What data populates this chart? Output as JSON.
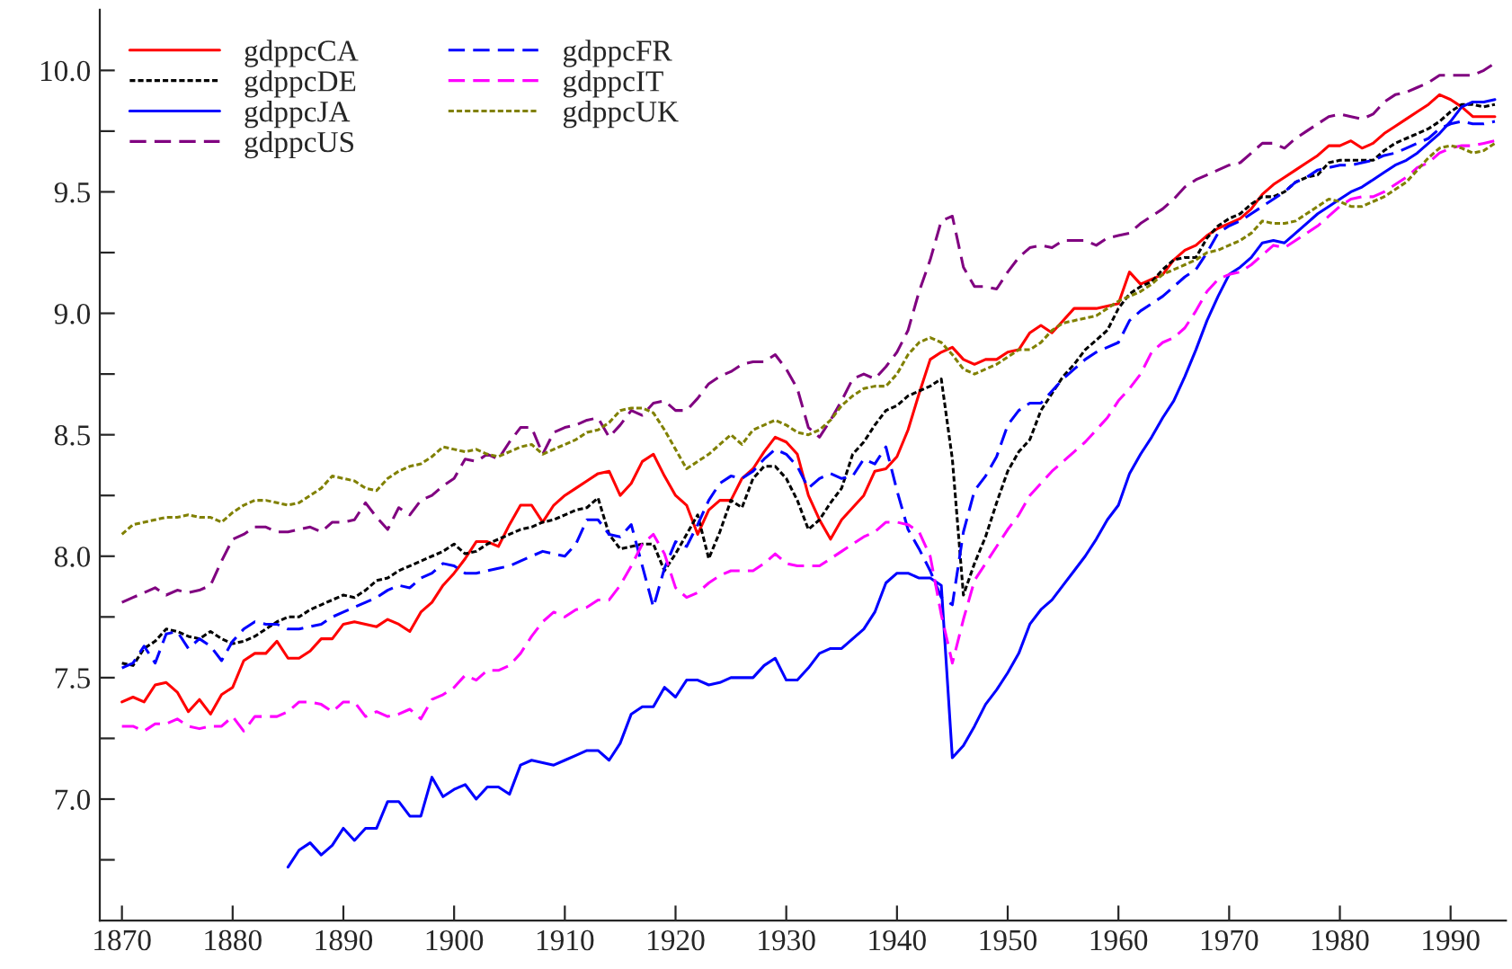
{
  "chart_data": {
    "type": "line",
    "x": [
      1870,
      1871,
      1872,
      1873,
      1874,
      1875,
      1876,
      1877,
      1878,
      1879,
      1880,
      1881,
      1882,
      1883,
      1884,
      1885,
      1886,
      1887,
      1888,
      1889,
      1890,
      1891,
      1892,
      1893,
      1894,
      1895,
      1896,
      1897,
      1898,
      1899,
      1900,
      1901,
      1902,
      1903,
      1904,
      1905,
      1906,
      1907,
      1908,
      1909,
      1910,
      1911,
      1912,
      1913,
      1914,
      1915,
      1916,
      1917,
      1918,
      1919,
      1920,
      1921,
      1922,
      1923,
      1924,
      1925,
      1926,
      1927,
      1928,
      1929,
      1930,
      1931,
      1932,
      1933,
      1934,
      1935,
      1936,
      1937,
      1938,
      1939,
      1940,
      1941,
      1942,
      1943,
      1944,
      1945,
      1946,
      1947,
      1948,
      1949,
      1950,
      1951,
      1952,
      1953,
      1954,
      1955,
      1956,
      1957,
      1958,
      1959,
      1960,
      1961,
      1962,
      1963,
      1964,
      1965,
      1966,
      1967,
      1968,
      1969,
      1970,
      1971,
      1972,
      1973,
      1974,
      1975,
      1976,
      1977,
      1978,
      1979,
      1980,
      1981,
      1982,
      1983,
      1984,
      1985,
      1986,
      1987,
      1988,
      1989,
      1990,
      1991,
      1992,
      1993,
      1994
    ],
    "xlim": [
      1868,
      1995
    ],
    "xticks": [
      1870,
      1880,
      1890,
      1900,
      1910,
      1920,
      1930,
      1940,
      1950,
      1960,
      1970,
      1980,
      1990
    ],
    "ylim": [
      6.5,
      10.25
    ],
    "yticks": [
      {
        "value": 6.75,
        "label": null
      },
      {
        "value": 7.0,
        "label": "7.0"
      },
      {
        "value": 7.25,
        "label": null
      },
      {
        "value": 7.5,
        "label": "7.5"
      },
      {
        "value": 7.75,
        "label": null
      },
      {
        "value": 8.0,
        "label": "8.0"
      },
      {
        "value": 8.25,
        "label": null
      },
      {
        "value": 8.5,
        "label": "8.5"
      },
      {
        "value": 8.75,
        "label": null
      },
      {
        "value": 9.0,
        "label": "9.0"
      },
      {
        "value": 9.25,
        "label": null
      },
      {
        "value": 9.5,
        "label": "9.5"
      },
      {
        "value": 9.75,
        "label": null
      },
      {
        "value": 10.0,
        "label": "10.0"
      }
    ],
    "grid": false,
    "legend": "top left",
    "series": [
      {
        "name": "gdppcCA",
        "color": "#ff0000",
        "line_style": "solid",
        "values": [
          7.4,
          7.42,
          7.4,
          7.47,
          7.48,
          7.44,
          7.36,
          7.41,
          7.35,
          7.43,
          7.46,
          7.57,
          7.6,
          7.6,
          7.65,
          7.58,
          7.58,
          7.61,
          7.66,
          7.66,
          7.72,
          7.73,
          7.72,
          7.71,
          7.74,
          7.72,
          7.69,
          7.77,
          7.81,
          7.88,
          7.93,
          7.99,
          8.06,
          8.06,
          8.04,
          8.13,
          8.21,
          8.21,
          8.14,
          8.21,
          8.25,
          8.28,
          8.31,
          8.34,
          8.35,
          8.25,
          8.3,
          8.39,
          8.42,
          8.33,
          8.25,
          8.21,
          8.09,
          8.19,
          8.23,
          8.23,
          8.32,
          8.36,
          8.43,
          8.49,
          8.47,
          8.42,
          8.25,
          8.15,
          8.07,
          8.15,
          8.2,
          8.25,
          8.35,
          8.36,
          8.41,
          8.52,
          8.67,
          8.81,
          8.84,
          8.86,
          8.81,
          8.79,
          8.81,
          8.81,
          8.84,
          8.85,
          8.92,
          8.95,
          8.92,
          8.97,
          9.02,
          9.02,
          9.02,
          9.03,
          9.04,
          9.17,
          9.12,
          9.14,
          9.16,
          9.22,
          9.26,
          9.28,
          9.32,
          9.35,
          9.37,
          9.39,
          9.43,
          9.49,
          9.53,
          9.56,
          9.59,
          9.62,
          9.65,
          9.69,
          9.69,
          9.71,
          9.68,
          9.7,
          9.74,
          9.77,
          9.8,
          9.83,
          9.86,
          9.9,
          9.88,
          9.85,
          9.81,
          9.81,
          9.81
        ]
      },
      {
        "name": "gdppcDE",
        "color": "#000000",
        "line_style": "dotted",
        "values": [
          7.56,
          7.55,
          7.62,
          7.65,
          7.7,
          7.69,
          7.67,
          7.66,
          7.69,
          7.66,
          7.64,
          7.65,
          7.67,
          7.7,
          7.73,
          7.75,
          7.75,
          7.78,
          7.8,
          7.82,
          7.84,
          7.83,
          7.86,
          7.9,
          7.91,
          7.94,
          7.96,
          7.98,
          8.0,
          8.02,
          8.05,
          8.01,
          8.02,
          8.05,
          8.07,
          8.09,
          8.11,
          8.12,
          8.14,
          8.15,
          8.17,
          8.19,
          8.2,
          8.24,
          8.09,
          8.03,
          8.04,
          8.05,
          8.05,
          7.94,
          8.01,
          8.09,
          8.17,
          7.99,
          8.1,
          8.23,
          8.2,
          8.32,
          8.37,
          8.37,
          8.32,
          8.23,
          8.11,
          8.15,
          8.22,
          8.28,
          8.42,
          8.47,
          8.54,
          8.6,
          8.62,
          8.66,
          8.68,
          8.7,
          8.73,
          8.4,
          7.84,
          7.97,
          8.08,
          8.22,
          8.35,
          8.43,
          8.48,
          8.6,
          8.67,
          8.74,
          8.79,
          8.85,
          8.89,
          8.93,
          9.02,
          9.08,
          9.11,
          9.13,
          9.18,
          9.22,
          9.23,
          9.23,
          9.31,
          9.36,
          9.39,
          9.41,
          9.45,
          9.48,
          9.48,
          9.5,
          9.54,
          9.56,
          9.57,
          9.62,
          9.63,
          9.63,
          9.63,
          9.63,
          9.67,
          9.7,
          9.72,
          9.74,
          9.76,
          9.79,
          9.83,
          9.86,
          9.86,
          9.85,
          9.86
        ]
      },
      {
        "name": "gdppcJA",
        "color": "#0000ff",
        "line_style": "solid",
        "values": [
          null,
          null,
          null,
          null,
          null,
          null,
          null,
          null,
          null,
          null,
          null,
          null,
          null,
          null,
          null,
          6.72,
          6.79,
          6.82,
          6.77,
          6.81,
          6.88,
          6.83,
          6.88,
          6.88,
          6.99,
          6.99,
          6.93,
          6.93,
          7.09,
          7.01,
          7.04,
          7.06,
          7.0,
          7.05,
          7.05,
          7.02,
          7.14,
          7.16,
          7.15,
          7.14,
          7.16,
          7.18,
          7.2,
          7.2,
          7.16,
          7.23,
          7.35,
          7.38,
          7.38,
          7.46,
          7.42,
          7.49,
          7.49,
          7.47,
          7.48,
          7.5,
          7.5,
          7.5,
          7.55,
          7.58,
          7.49,
          7.49,
          7.54,
          7.6,
          7.62,
          7.62,
          7.66,
          7.7,
          7.77,
          7.89,
          7.93,
          7.93,
          7.91,
          7.91,
          7.88,
          7.17,
          7.22,
          7.3,
          7.39,
          7.45,
          7.52,
          7.6,
          7.72,
          7.78,
          7.82,
          7.88,
          7.94,
          8.0,
          8.07,
          8.15,
          8.21,
          8.34,
          8.42,
          8.49,
          8.57,
          8.64,
          8.74,
          8.85,
          8.97,
          9.07,
          9.16,
          9.19,
          9.23,
          9.29,
          9.3,
          9.29,
          9.33,
          9.37,
          9.41,
          9.44,
          9.47,
          9.5,
          9.52,
          9.55,
          9.58,
          9.61,
          9.63,
          9.66,
          9.7,
          9.74,
          9.79,
          9.85,
          9.87,
          9.87,
          9.88
        ]
      },
      {
        "name": "gdppcUS",
        "color": "#800080",
        "line_style": "dashed",
        "values": [
          7.81,
          7.83,
          7.85,
          7.87,
          7.84,
          7.86,
          7.85,
          7.86,
          7.88,
          7.98,
          8.07,
          8.09,
          8.12,
          8.12,
          8.1,
          8.1,
          8.11,
          8.12,
          8.1,
          8.14,
          8.14,
          8.15,
          8.22,
          8.16,
          8.11,
          8.2,
          8.17,
          8.23,
          8.25,
          8.29,
          8.32,
          8.4,
          8.39,
          8.42,
          8.4,
          8.47,
          8.53,
          8.53,
          8.42,
          8.51,
          8.53,
          8.54,
          8.56,
          8.57,
          8.49,
          8.54,
          8.6,
          8.58,
          8.63,
          8.64,
          8.6,
          8.6,
          8.65,
          8.71,
          8.74,
          8.76,
          8.79,
          8.8,
          8.8,
          8.83,
          8.77,
          8.69,
          8.53,
          8.49,
          8.56,
          8.64,
          8.73,
          8.75,
          8.73,
          8.78,
          8.84,
          8.93,
          9.09,
          9.22,
          9.38,
          9.4,
          9.19,
          9.11,
          9.11,
          9.1,
          9.17,
          9.23,
          9.27,
          9.28,
          9.27,
          9.3,
          9.3,
          9.3,
          9.28,
          9.31,
          9.32,
          9.33,
          9.37,
          9.4,
          9.43,
          9.47,
          9.52,
          9.55,
          9.57,
          9.59,
          9.61,
          9.62,
          9.66,
          9.7,
          9.7,
          9.68,
          9.72,
          9.75,
          9.78,
          9.81,
          9.82,
          9.81,
          9.8,
          9.82,
          9.87,
          9.9,
          9.91,
          9.93,
          9.95,
          9.98,
          9.98,
          9.98,
          9.98,
          10.0,
          10.03
        ]
      },
      {
        "name": "gdppcFR",
        "color": "#0000ff",
        "line_style": "dashed",
        "values": [
          7.54,
          7.56,
          7.63,
          7.56,
          7.68,
          7.69,
          7.62,
          7.66,
          7.63,
          7.57,
          7.65,
          7.7,
          7.73,
          7.72,
          7.72,
          7.7,
          7.7,
          7.71,
          7.72,
          7.75,
          7.77,
          7.79,
          7.81,
          7.83,
          7.86,
          7.88,
          7.87,
          7.91,
          7.93,
          7.97,
          7.96,
          7.93,
          7.93,
          7.94,
          7.95,
          7.96,
          7.98,
          8.0,
          8.02,
          8.01,
          8.0,
          8.05,
          8.15,
          8.15,
          8.09,
          8.08,
          8.13,
          7.96,
          7.79,
          7.95,
          8.06,
          8.04,
          8.13,
          8.23,
          8.3,
          8.33,
          8.32,
          8.35,
          8.4,
          8.44,
          8.42,
          8.37,
          8.28,
          8.32,
          8.34,
          8.32,
          8.33,
          8.4,
          8.38,
          8.45,
          8.27,
          8.11,
          8.03,
          7.94,
          7.83,
          7.8,
          8.1,
          8.27,
          8.33,
          8.41,
          8.54,
          8.6,
          8.63,
          8.63,
          8.68,
          8.73,
          8.77,
          8.81,
          8.84,
          8.86,
          8.88,
          8.97,
          9.01,
          9.04,
          9.07,
          9.11,
          9.15,
          9.18,
          9.25,
          9.33,
          9.36,
          9.38,
          9.41,
          9.44,
          9.47,
          9.5,
          9.54,
          9.56,
          9.59,
          9.6,
          9.61,
          9.61,
          9.62,
          9.63,
          9.65,
          9.66,
          9.68,
          9.7,
          9.72,
          9.76,
          9.78,
          9.79,
          9.78,
          9.78,
          9.79
        ]
      },
      {
        "name": "gdppcIT",
        "color": "#ff00ff",
        "line_style": "dashed",
        "values": [
          7.3,
          7.3,
          7.28,
          7.31,
          7.31,
          7.33,
          7.3,
          7.29,
          7.3,
          7.3,
          7.34,
          7.28,
          7.34,
          7.34,
          7.34,
          7.36,
          7.4,
          7.4,
          7.39,
          7.36,
          7.4,
          7.4,
          7.34,
          7.36,
          7.34,
          7.35,
          7.37,
          7.33,
          7.41,
          7.43,
          7.46,
          7.51,
          7.49,
          7.53,
          7.53,
          7.55,
          7.6,
          7.67,
          7.73,
          7.77,
          7.75,
          7.78,
          7.79,
          7.82,
          7.82,
          7.88,
          7.96,
          8.05,
          8.09,
          8.01,
          7.87,
          7.83,
          7.85,
          7.89,
          7.92,
          7.94,
          7.94,
          7.94,
          7.97,
          8.01,
          7.97,
          7.96,
          7.96,
          7.96,
          7.99,
          8.02,
          8.05,
          8.08,
          8.1,
          8.14,
          8.14,
          8.13,
          8.1,
          8.0,
          7.76,
          7.56,
          7.74,
          7.9,
          7.97,
          8.04,
          8.11,
          8.17,
          8.25,
          8.3,
          8.35,
          8.39,
          8.43,
          8.47,
          8.52,
          8.57,
          8.64,
          8.69,
          8.75,
          8.84,
          8.88,
          8.9,
          8.94,
          9.01,
          9.09,
          9.14,
          9.16,
          9.17,
          9.2,
          9.24,
          9.28,
          9.27,
          9.3,
          9.33,
          9.36,
          9.4,
          9.44,
          9.47,
          9.48,
          9.48,
          9.5,
          9.53,
          9.56,
          9.6,
          9.62,
          9.66,
          9.68,
          9.69,
          9.69,
          9.7,
          9.71
        ]
      },
      {
        "name": "gdppcUK",
        "color": "#808000",
        "line_style": "dotted",
        "values": [
          8.09,
          8.13,
          8.14,
          8.15,
          8.16,
          8.16,
          8.17,
          8.16,
          8.16,
          8.14,
          8.18,
          8.21,
          8.23,
          8.23,
          8.22,
          8.21,
          8.22,
          8.25,
          8.28,
          8.33,
          8.32,
          8.31,
          8.28,
          8.27,
          8.32,
          8.35,
          8.37,
          8.38,
          8.41,
          8.45,
          8.44,
          8.43,
          8.44,
          8.42,
          8.41,
          8.43,
          8.45,
          8.46,
          8.42,
          8.44,
          8.46,
          8.48,
          8.51,
          8.52,
          8.55,
          8.6,
          8.61,
          8.61,
          8.59,
          8.52,
          8.44,
          8.36,
          8.39,
          8.42,
          8.46,
          8.5,
          8.46,
          8.52,
          8.54,
          8.56,
          8.54,
          8.51,
          8.5,
          8.52,
          8.56,
          8.62,
          8.66,
          8.69,
          8.7,
          8.7,
          8.75,
          8.83,
          8.88,
          8.9,
          8.88,
          8.83,
          8.77,
          8.75,
          8.77,
          8.79,
          8.82,
          8.85,
          8.85,
          8.88,
          8.93,
          8.96,
          8.97,
          8.98,
          8.99,
          9.02,
          9.05,
          9.07,
          9.09,
          9.12,
          9.16,
          9.18,
          9.2,
          9.22,
          9.25,
          9.26,
          9.28,
          9.3,
          9.33,
          9.38,
          9.37,
          9.37,
          9.38,
          9.41,
          9.44,
          9.47,
          9.46,
          9.44,
          9.44,
          9.46,
          9.48,
          9.51,
          9.54,
          9.59,
          9.64,
          9.68,
          9.69,
          9.68,
          9.66,
          9.67,
          9.7
        ]
      }
    ]
  }
}
